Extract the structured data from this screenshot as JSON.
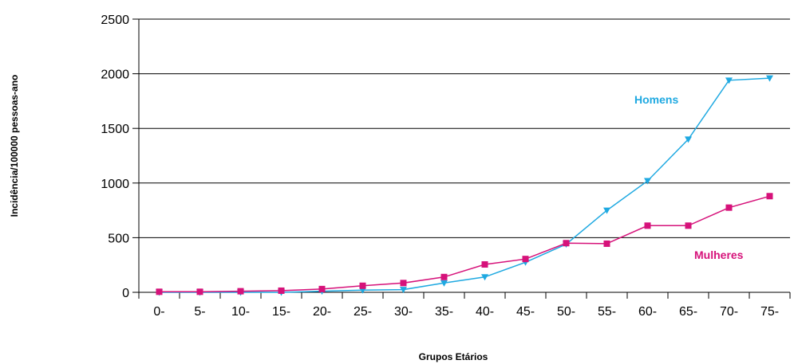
{
  "chart_data": {
    "type": "line",
    "title": "",
    "xlabel": "Grupos Etários",
    "ylabel": "Incidência/100000 pessoas-ano",
    "categories": [
      "0-",
      "5-",
      "10-",
      "15-",
      "20-",
      "25-",
      "30-",
      "35-",
      "40-",
      "45-",
      "50-",
      "55-",
      "60-",
      "65-",
      "70-",
      "75-"
    ],
    "ylim": [
      0,
      2500
    ],
    "yticks": [
      "0",
      "500",
      "1000",
      "1500",
      "2000",
      "2500"
    ],
    "grid": "horizontal",
    "series": [
      {
        "name": "Homens",
        "color": "#1FA9E1",
        "marker": "triangle-down",
        "values": [
          0,
          0,
          0,
          0,
          10,
          20,
          25,
          85,
          140,
          275,
          440,
          750,
          1020,
          1400,
          1940,
          1960
        ]
      },
      {
        "name": "Mulheres",
        "color": "#D6127A",
        "marker": "square",
        "values": [
          5,
          5,
          10,
          15,
          30,
          60,
          85,
          140,
          255,
          305,
          450,
          445,
          610,
          610,
          775,
          880
        ]
      }
    ]
  }
}
